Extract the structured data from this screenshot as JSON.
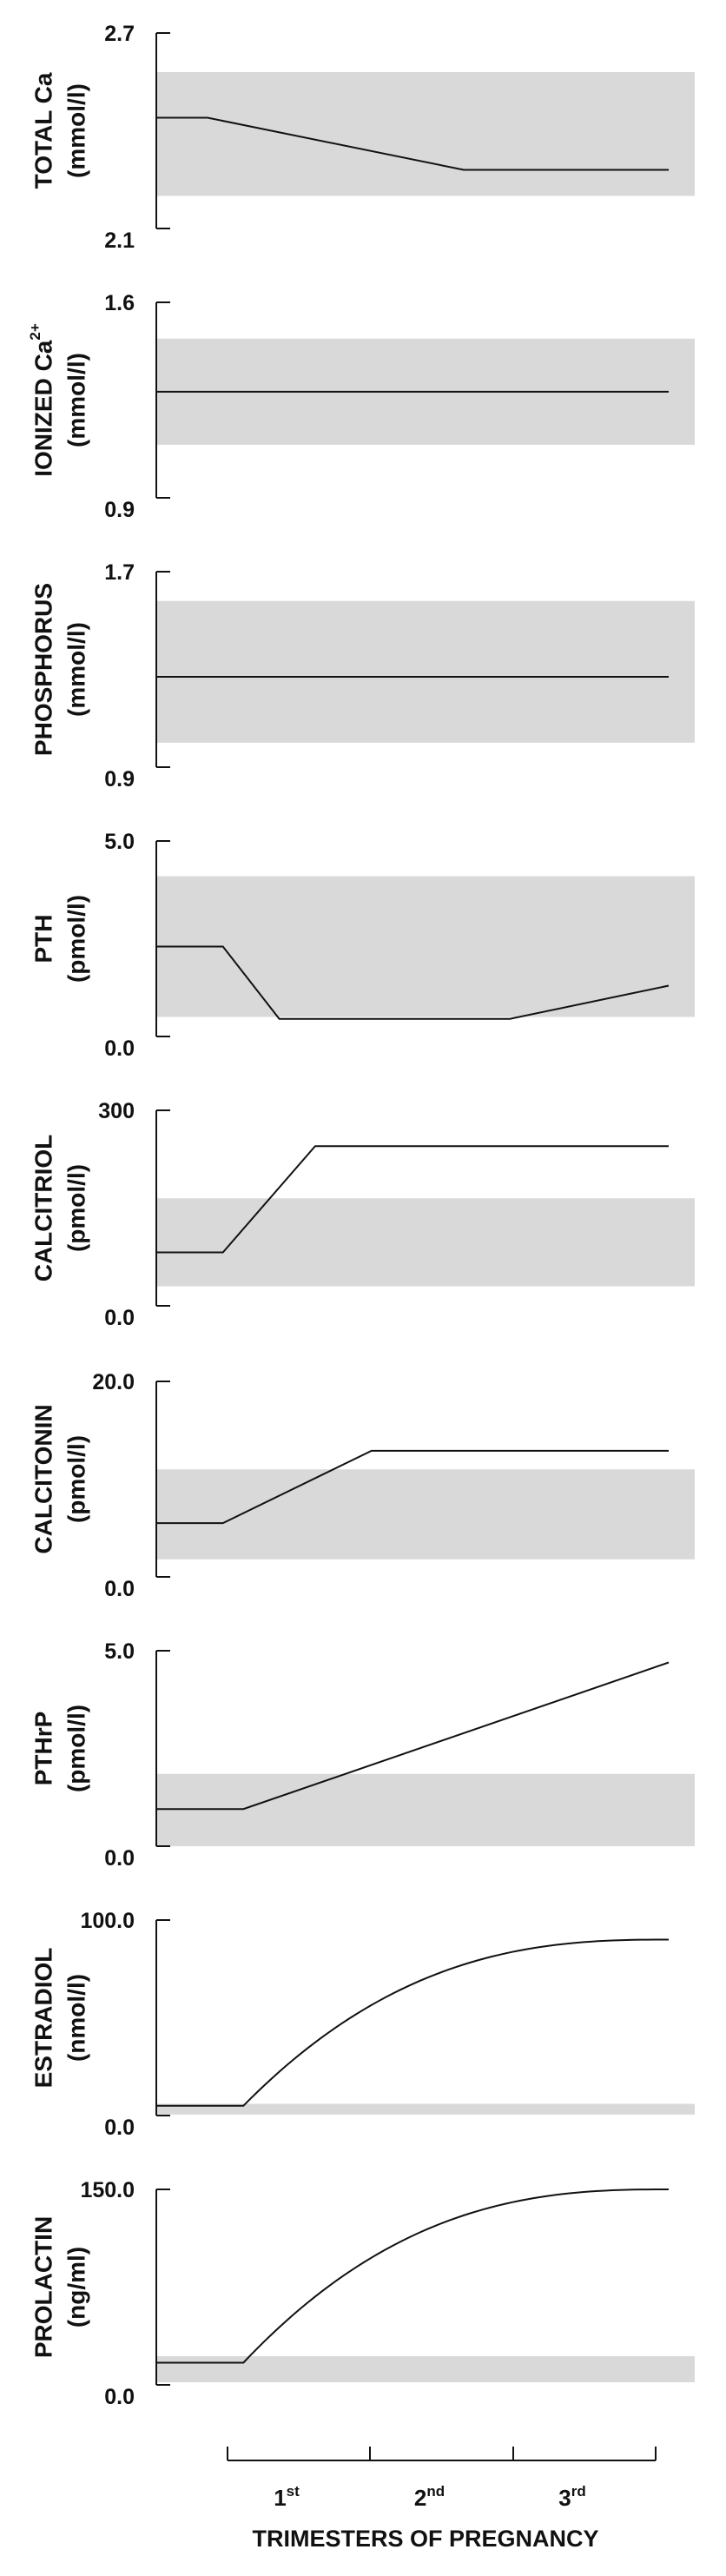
{
  "chart_data": {
    "type": "line",
    "panels": [
      {
        "id": "total-ca",
        "title": "TOTAL Ca",
        "unit": "(mmol/l)",
        "ylim": [
          2.1,
          2.7
        ],
        "y_tick_labels": [
          "2.7",
          "2.1"
        ],
        "normal_range": [
          2.2,
          2.58
        ],
        "series": [
          {
            "x": [
              0,
              0.1,
              0.6,
              1.0
            ],
            "y": [
              2.44,
              2.44,
              2.28,
              2.28
            ],
            "curve": "linear"
          }
        ]
      },
      {
        "id": "ionized-ca",
        "title": "IONIZED Ca",
        "title_superscript": "2+",
        "unit": "(mmol/l)",
        "ylim": [
          0.9,
          1.6
        ],
        "y_tick_labels": [
          "1.6",
          "0.9"
        ],
        "normal_range": [
          1.09,
          1.47
        ],
        "series": [
          {
            "x": [
              0,
              1.0
            ],
            "y": [
              1.28,
              1.28
            ],
            "curve": "linear"
          }
        ]
      },
      {
        "id": "phosphorus",
        "title": "PHOSPHORUS",
        "unit": "(mmol/l)",
        "ylim": [
          0.9,
          1.7
        ],
        "y_tick_labels": [
          "1.7",
          "0.9"
        ],
        "normal_range": [
          1.0,
          1.58
        ],
        "series": [
          {
            "x": [
              0,
              1.0
            ],
            "y": [
              1.27,
              1.27
            ],
            "curve": "linear"
          }
        ]
      },
      {
        "id": "pth",
        "title": "PTH",
        "unit": "(pmol/l)",
        "ylim": [
          0.0,
          5.0
        ],
        "y_tick_labels": [
          "5.0",
          "0.0"
        ],
        "normal_range": [
          0.5,
          4.1
        ],
        "series": [
          {
            "x": [
              0,
              0.13,
              0.24,
              0.69,
              1.0
            ],
            "y": [
              2.3,
              2.3,
              0.45,
              0.45,
              1.3
            ],
            "curve": "linear"
          }
        ]
      },
      {
        "id": "calcitriol",
        "title": "CALCITRIOL",
        "unit": "(pmol/l)",
        "ylim": [
          0,
          300
        ],
        "y_tick_labels": [
          "300",
          "0.0"
        ],
        "normal_range": [
          30,
          165
        ],
        "series": [
          {
            "x": [
              0,
              0.13,
              0.31,
              1.0
            ],
            "y": [
              82,
              82,
              245,
              245
            ],
            "curve": "linear"
          }
        ]
      },
      {
        "id": "calcitonin",
        "title": "CALCITONIN",
        "unit": "(pmol/l)",
        "ylim": [
          0.0,
          20.0
        ],
        "y_tick_labels": [
          "20.0",
          "0.0"
        ],
        "normal_range": [
          1.8,
          11.0
        ],
        "series": [
          {
            "x": [
              0,
              0.13,
              0.42,
              1.0
            ],
            "y": [
              5.5,
              5.5,
              12.9,
              12.9
            ],
            "curve": "linear"
          }
        ]
      },
      {
        "id": "pthrp",
        "title": "PTHrP",
        "unit": "(pmol/l)",
        "ylim": [
          0.0,
          5.0
        ],
        "y_tick_labels": [
          "5.0",
          "0.0"
        ],
        "normal_range": [
          0.0,
          1.85
        ],
        "series": [
          {
            "x": [
              0,
              0.17,
              1.0
            ],
            "y": [
              0.95,
              0.95,
              4.7
            ],
            "curve": "linear"
          }
        ]
      },
      {
        "id": "estradiol",
        "title": "ESTRADIOL",
        "unit": "(nmol/l)",
        "ylim": [
          0.0,
          100.0
        ],
        "y_tick_labels": [
          "100.0",
          "0.0"
        ],
        "normal_range": [
          0.5,
          6.0
        ],
        "series": [
          {
            "x": [
              0,
              0.17,
              1.0
            ],
            "y": [
              5.0,
              5.0,
              90.0
            ],
            "curve": "rising-saturating"
          }
        ]
      },
      {
        "id": "prolactin",
        "title": "PROLACTIN",
        "unit": "(ng/ml)",
        "ylim": [
          0.0,
          150.0
        ],
        "y_tick_labels": [
          "150.0",
          "0.0"
        ],
        "normal_range": [
          2.0,
          22.0
        ],
        "series": [
          {
            "x": [
              0,
              0.17,
              1.0
            ],
            "y": [
              17.0,
              17.0,
              150.0
            ],
            "curve": "rising-saturating"
          }
        ]
      }
    ],
    "x_axis": {
      "title": "TRIMESTERS OF PREGNANCY",
      "tick_labels": [
        {
          "base": "1",
          "sup": "st"
        },
        {
          "base": "2",
          "sup": "nd"
        },
        {
          "base": "3",
          "sup": "rd"
        }
      ]
    },
    "grid": false,
    "legend": "none",
    "colors": {
      "line": "#111111",
      "normal_range_band": "#d9d9d9"
    }
  }
}
